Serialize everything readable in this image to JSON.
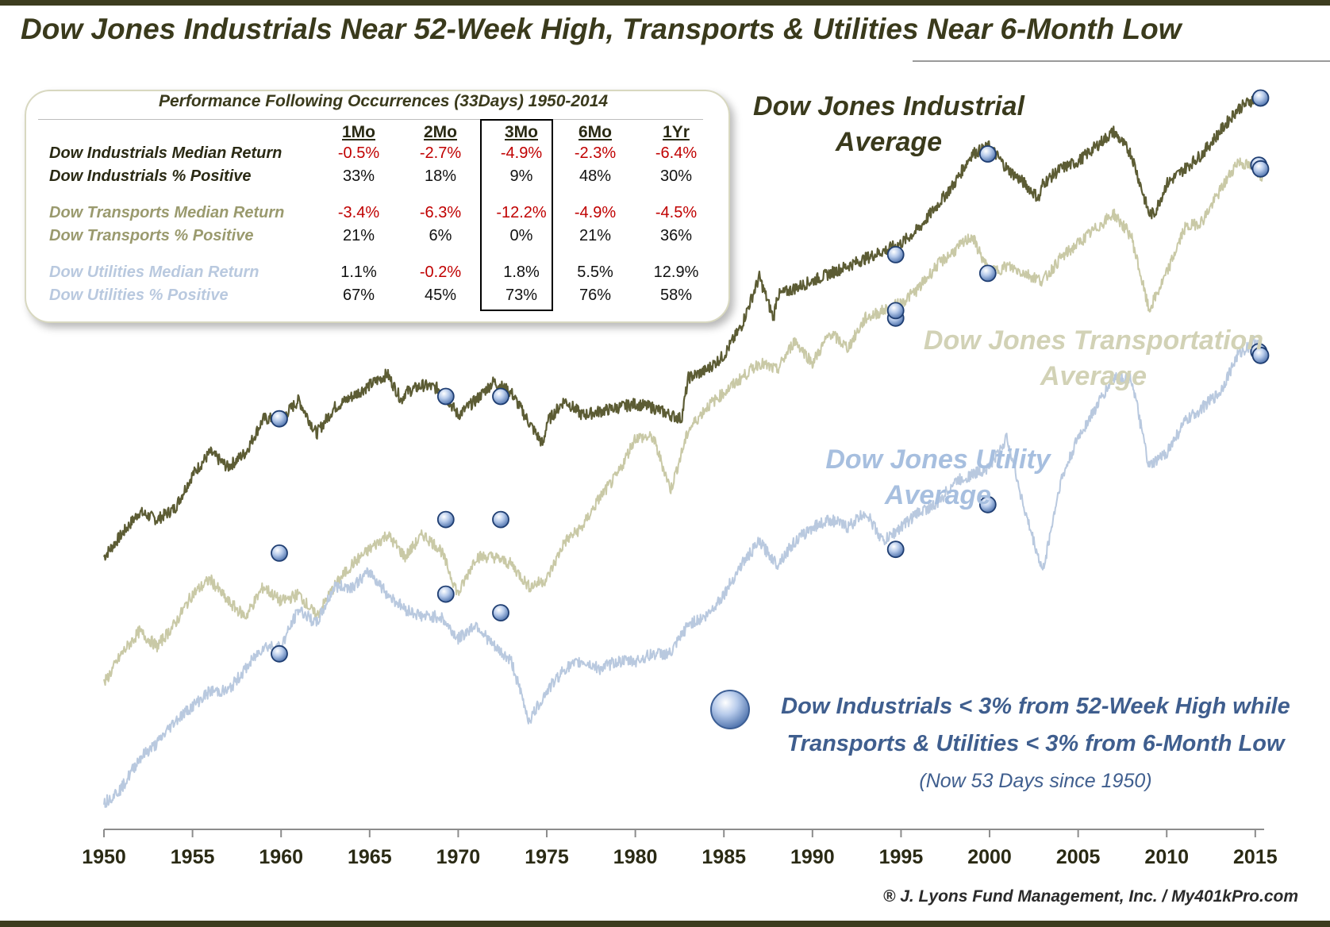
{
  "title": "Dow Jones Industrials Near 52-Week High, Transports & Utilities Near 6-Month Low",
  "credit": "® J. Lyons Fund Management, Inc. / My401kPro.com",
  "colors": {
    "industrials": "#5c5c34",
    "transports": "#c9c9a6",
    "utilities": "#b9c9df",
    "red": "#c00000",
    "legend_text": "#3f5e8e"
  },
  "perf_table": {
    "title": "Performance Following Occurrences (33Days) 1950-2014",
    "columns": [
      "1Mo",
      "2Mo",
      "3Mo",
      "6Mo",
      "1Yr"
    ],
    "highlight_column": "3Mo",
    "rows": [
      {
        "label": "Dow Industrials Median Return",
        "values": [
          "-0.5%",
          "-2.7%",
          "-4.9%",
          "-2.3%",
          "-6.4%"
        ]
      },
      {
        "label": "Dow Industrials % Positive",
        "values": [
          "33%",
          "18%",
          "9%",
          "48%",
          "30%"
        ]
      },
      {
        "label": "Dow Transports Median Return",
        "values": [
          "-3.4%",
          "-6.3%",
          "-12.2%",
          "-4.9%",
          "-4.5%"
        ]
      },
      {
        "label": "Dow Transports % Positive",
        "values": [
          "21%",
          "6%",
          "0%",
          "21%",
          "36%"
        ]
      },
      {
        "label": "Dow Utilities Median Return",
        "values": [
          "1.1%",
          "-0.2%",
          "1.8%",
          "5.5%",
          "12.9%"
        ]
      },
      {
        "label": "Dow Utilities % Positive",
        "values": [
          "67%",
          "45%",
          "73%",
          "76%",
          "58%"
        ]
      }
    ]
  },
  "chart_data": {
    "type": "line",
    "title": "Dow Jones Industrials Near 52-Week High, Transports & Utilities Near 6-Month Low",
    "xlabel": "",
    "ylabel": "",
    "xlim": [
      1950,
      2015.5
    ],
    "x_ticks": [
      "1950",
      "1955",
      "1960",
      "1965",
      "1970",
      "1975",
      "1980",
      "1985",
      "1990",
      "1995",
      "2000",
      "2005",
      "2010",
      "2015"
    ],
    "y_scale_note": "relative (log scale, unlabeled; values are chart-relative units 0-100)",
    "series": [
      {
        "name": "Dow Jones Industrial Average",
        "label_lines": [
          "Dow Jones Industrial",
          "Average"
        ],
        "points": [
          [
            1950,
            36
          ],
          [
            1951,
            39
          ],
          [
            1952,
            42
          ],
          [
            1953,
            41
          ],
          [
            1954,
            42.5
          ],
          [
            1955,
            47
          ],
          [
            1956,
            50
          ],
          [
            1957,
            48
          ],
          [
            1958,
            50
          ],
          [
            1959,
            54.5
          ],
          [
            1960,
            54.5
          ],
          [
            1961,
            57
          ],
          [
            1962,
            52.5
          ],
          [
            1963,
            56
          ],
          [
            1964,
            57.5
          ],
          [
            1965,
            59
          ],
          [
            1966,
            60.5
          ],
          [
            1966.8,
            57
          ],
          [
            1967,
            58
          ],
          [
            1968,
            59
          ],
          [
            1969,
            58.5
          ],
          [
            1970,
            55
          ],
          [
            1971,
            57
          ],
          [
            1972,
            59.5
          ],
          [
            1973,
            58
          ],
          [
            1974,
            54
          ],
          [
            1974.8,
            51
          ],
          [
            1975,
            54
          ],
          [
            1976,
            57
          ],
          [
            1977,
            55
          ],
          [
            1978,
            55.5
          ],
          [
            1979,
            56
          ],
          [
            1980,
            56.5
          ],
          [
            1981,
            56
          ],
          [
            1982,
            55
          ],
          [
            1982.6,
            54.5
          ],
          [
            1983,
            60
          ],
          [
            1984,
            61
          ],
          [
            1985,
            63
          ],
          [
            1986,
            67
          ],
          [
            1987,
            73.5
          ],
          [
            1987.8,
            68
          ],
          [
            1988,
            71
          ],
          [
            1989,
            72
          ],
          [
            1990,
            73
          ],
          [
            1991,
            74
          ],
          [
            1992,
            75
          ],
          [
            1993,
            76
          ],
          [
            1994,
            77
          ],
          [
            1995,
            78
          ],
          [
            1996,
            80
          ],
          [
            1997,
            83
          ],
          [
            1998,
            86
          ],
          [
            1999,
            90
          ],
          [
            2000,
            91
          ],
          [
            2001,
            88
          ],
          [
            2002,
            86
          ],
          [
            2002.8,
            84
          ],
          [
            2003,
            86
          ],
          [
            2004,
            88
          ],
          [
            2005,
            89
          ],
          [
            2006,
            91
          ],
          [
            2007,
            93
          ],
          [
            2008,
            90
          ],
          [
            2009,
            82
          ],
          [
            2009.3,
            82
          ],
          [
            2010,
            86
          ],
          [
            2011,
            88
          ],
          [
            2012,
            90
          ],
          [
            2013,
            93
          ],
          [
            2014,
            96
          ],
          [
            2015,
            97.5
          ],
          [
            2015.4,
            97
          ]
        ],
        "markers": [
          [
            1959.9,
            54.5
          ],
          [
            1969.3,
            57.5
          ],
          [
            1972.4,
            57.5
          ],
          [
            1994.7,
            76.5
          ],
          [
            1999.9,
            90
          ],
          [
            2015.3,
            97.5
          ]
        ]
      },
      {
        "name": "Dow Jones Transportation Average",
        "label_lines": [
          "Dow Jones Transportation",
          "Average"
        ],
        "points": [
          [
            1950,
            19
          ],
          [
            1951,
            23
          ],
          [
            1952,
            26
          ],
          [
            1953,
            24
          ],
          [
            1954,
            27
          ],
          [
            1955,
            31
          ],
          [
            1956,
            33
          ],
          [
            1957,
            30
          ],
          [
            1958,
            28
          ],
          [
            1959,
            32
          ],
          [
            1960,
            30
          ],
          [
            1961,
            31
          ],
          [
            1962,
            28
          ],
          [
            1963,
            32
          ],
          [
            1964,
            35
          ],
          [
            1965,
            37
          ],
          [
            1966,
            39
          ],
          [
            1967,
            36
          ],
          [
            1968,
            39
          ],
          [
            1969,
            37
          ],
          [
            1970,
            31
          ],
          [
            1971,
            36
          ],
          [
            1972,
            36
          ],
          [
            1973,
            35
          ],
          [
            1974,
            32
          ],
          [
            1975,
            33
          ],
          [
            1976,
            38
          ],
          [
            1977,
            40
          ],
          [
            1978,
            44
          ],
          [
            1979,
            47
          ],
          [
            1980,
            52
          ],
          [
            1981,
            52
          ],
          [
            1982,
            45
          ],
          [
            1983,
            53
          ],
          [
            1984,
            56
          ],
          [
            1985,
            58
          ],
          [
            1986,
            60
          ],
          [
            1987,
            62
          ],
          [
            1988,
            61
          ],
          [
            1989,
            65
          ],
          [
            1990,
            62
          ],
          [
            1991,
            66
          ],
          [
            1992,
            64
          ],
          [
            1993,
            68
          ],
          [
            1994,
            69
          ],
          [
            1995,
            70
          ],
          [
            1996,
            72
          ],
          [
            1997,
            75
          ],
          [
            1998,
            77
          ],
          [
            1999,
            79
          ],
          [
            2000,
            74
          ],
          [
            2001,
            75
          ],
          [
            2002,
            74
          ],
          [
            2003,
            73
          ],
          [
            2004,
            76
          ],
          [
            2005,
            78
          ],
          [
            2006,
            80
          ],
          [
            2007,
            82
          ],
          [
            2008,
            79
          ],
          [
            2009,
            69
          ],
          [
            2010,
            74
          ],
          [
            2011,
            80
          ],
          [
            2012,
            81
          ],
          [
            2013,
            85
          ],
          [
            2014,
            89
          ],
          [
            2015,
            88
          ],
          [
            2015.4,
            87
          ]
        ],
        "markers": [
          [
            1959.9,
            36.5
          ],
          [
            1969.3,
            41
          ],
          [
            1972.4,
            41
          ],
          [
            1994.7,
            68
          ],
          [
            1994.7,
            69
          ],
          [
            1999.9,
            74
          ],
          [
            2015.2,
            88.5
          ],
          [
            2015.3,
            88
          ]
        ]
      },
      {
        "name": "Dow Jones Utility Average",
        "label_lines": [
          "Dow Jones Utility",
          "Average"
        ],
        "points": [
          [
            1950,
            3
          ],
          [
            1951,
            5
          ],
          [
            1952,
            9
          ],
          [
            1953,
            11
          ],
          [
            1954,
            14
          ],
          [
            1955,
            16
          ],
          [
            1956,
            18
          ],
          [
            1957,
            18
          ],
          [
            1958,
            21
          ],
          [
            1959,
            24
          ],
          [
            1960,
            24
          ],
          [
            1961,
            29
          ],
          [
            1962,
            27
          ],
          [
            1963,
            32
          ],
          [
            1964,
            32
          ],
          [
            1965,
            34
          ],
          [
            1966,
            31
          ],
          [
            1967,
            29
          ],
          [
            1968,
            28
          ],
          [
            1969,
            28
          ],
          [
            1970,
            25
          ],
          [
            1971,
            27
          ],
          [
            1972,
            24
          ],
          [
            1973,
            22
          ],
          [
            1974,
            14
          ],
          [
            1975,
            18
          ],
          [
            1976,
            21
          ],
          [
            1977,
            22
          ],
          [
            1978,
            21
          ],
          [
            1979,
            22
          ],
          [
            1980,
            22
          ],
          [
            1981,
            23
          ],
          [
            1982,
            23
          ],
          [
            1983,
            27
          ],
          [
            1984,
            28
          ],
          [
            1985,
            31
          ],
          [
            1986,
            35
          ],
          [
            1987,
            38
          ],
          [
            1988,
            35
          ],
          [
            1989,
            38
          ],
          [
            1990,
            40
          ],
          [
            1991,
            41
          ],
          [
            1992,
            40
          ],
          [
            1993,
            42
          ],
          [
            1994,
            38
          ],
          [
            1995,
            40
          ],
          [
            1996,
            42
          ],
          [
            1997,
            43
          ],
          [
            1998,
            46
          ],
          [
            1999,
            47
          ],
          [
            2000,
            48
          ],
          [
            2001,
            52
          ],
          [
            2002,
            42
          ],
          [
            2003,
            34
          ],
          [
            2004,
            46
          ],
          [
            2005,
            52
          ],
          [
            2006,
            56
          ],
          [
            2007,
            60
          ],
          [
            2008,
            60
          ],
          [
            2009,
            48
          ],
          [
            2010,
            50
          ],
          [
            2011,
            54
          ],
          [
            2012,
            56
          ],
          [
            2013,
            58
          ],
          [
            2014,
            63
          ],
          [
            2015,
            65
          ],
          [
            2015.4,
            64
          ]
        ],
        "markers": [
          [
            1959.9,
            23
          ],
          [
            1969.3,
            31
          ],
          [
            1972.4,
            28.5
          ],
          [
            1994.7,
            37
          ],
          [
            1999.9,
            43
          ],
          [
            2015.2,
            63.5
          ],
          [
            2015.3,
            63
          ]
        ]
      }
    ],
    "legend": {
      "line1": "Dow Industrials < 3% from 52-Week High while",
      "line2": "Transports & Utilities < 3% from 6-Month Low",
      "sub": "(Now 53 Days since 1950)"
    },
    "grid": false
  }
}
